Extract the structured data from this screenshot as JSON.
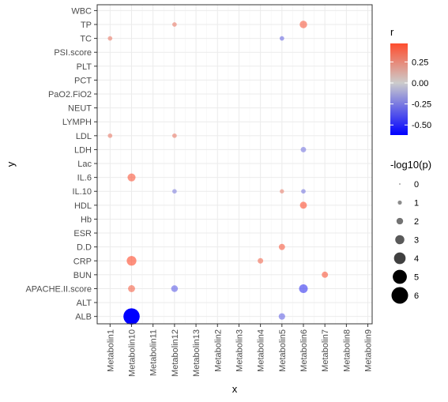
{
  "chart_data": {
    "type": "scatter",
    "xlabel": "x",
    "ylabel": "y",
    "x_categories": [
      "Metabolin1",
      "Metabolin10",
      "Metabolin11",
      "Metabolin12",
      "Metabolin13",
      "Metabolin2",
      "Metabolin3",
      "Metabolin4",
      "Metabolin5",
      "Metabolin6",
      "Metabolin7",
      "Metabolin8",
      "Metabolin9"
    ],
    "y_categories": [
      "ALB",
      "ALT",
      "APACHE.II.score",
      "BUN",
      "CRP",
      "D.D",
      "ESR",
      "Hb",
      "HDL",
      "IL.10",
      "IL.6",
      "Lac",
      "LDH",
      "LDL",
      "LYMPH",
      "NEUT",
      "PaO2.FiO2",
      "PCT",
      "PLT",
      "PSI.score",
      "TC",
      "TP",
      "WBC"
    ],
    "grid": true,
    "points": [
      {
        "x": "Metabolin1",
        "y": "TC",
        "r": 0.28,
        "p": 1.2
      },
      {
        "x": "Metabolin1",
        "y": "LDL",
        "r": 0.28,
        "p": 1.2
      },
      {
        "x": "Metabolin10",
        "y": "IL.6",
        "r": 0.42,
        "p": 2.6
      },
      {
        "x": "Metabolin10",
        "y": "APACHE.II.score",
        "r": 0.38,
        "p": 2.2
      },
      {
        "x": "Metabolin10",
        "y": "CRP",
        "r": 0.47,
        "p": 3.3
      },
      {
        "x": "Metabolin10",
        "y": "ALB",
        "r": -0.62,
        "p": 6
      },
      {
        "x": "Metabolin12",
        "y": "TP",
        "r": 0.28,
        "p": 1.2
      },
      {
        "x": "Metabolin12",
        "y": "LDL",
        "r": 0.28,
        "p": 1.2
      },
      {
        "x": "Metabolin12",
        "y": "IL.10",
        "r": -0.22,
        "p": 1.2
      },
      {
        "x": "Metabolin12",
        "y": "APACHE.II.score",
        "r": -0.32,
        "p": 2.1
      },
      {
        "x": "Metabolin4",
        "y": "CRP",
        "r": 0.35,
        "p": 1.6
      },
      {
        "x": "Metabolin5",
        "y": "TC",
        "r": -0.28,
        "p": 1.2
      },
      {
        "x": "Metabolin5",
        "y": "IL.10",
        "r": 0.26,
        "p": 1.1
      },
      {
        "x": "Metabolin5",
        "y": "D.D",
        "r": 0.4,
        "p": 1.9
      },
      {
        "x": "Metabolin5",
        "y": "ALB",
        "r": -0.3,
        "p": 2.0
      },
      {
        "x": "Metabolin6",
        "y": "TP",
        "r": 0.4,
        "p": 2.4
      },
      {
        "x": "Metabolin6",
        "y": "LDH",
        "r": -0.25,
        "p": 1.6
      },
      {
        "x": "Metabolin6",
        "y": "IL.10",
        "r": -0.25,
        "p": 1.2
      },
      {
        "x": "Metabolin6",
        "y": "HDL",
        "r": 0.45,
        "p": 2.2
      },
      {
        "x": "Metabolin6",
        "y": "APACHE.II.score",
        "r": -0.45,
        "p": 2.9
      },
      {
        "x": "Metabolin7",
        "y": "BUN",
        "r": 0.42,
        "p": 1.9
      }
    ],
    "color_legend": {
      "title": "r",
      "ticks": [
        0.25,
        0.0,
        -0.25,
        -0.5
      ],
      "tick_labels": [
        "0.25",
        "0.00",
        "-0.25",
        "-0.50"
      ],
      "range": [
        -0.62,
        0.47
      ],
      "colors": {
        "low": "#0000ff",
        "mid": "#cccccc",
        "high": "#ff4d2e"
      }
    },
    "size_legend": {
      "title": "-log10(p)",
      "values": [
        0,
        1,
        2,
        3,
        4,
        5,
        6
      ],
      "labels": [
        "0",
        "1",
        "2",
        "3",
        "4",
        "5",
        "6"
      ]
    },
    "legend_position": "right"
  }
}
